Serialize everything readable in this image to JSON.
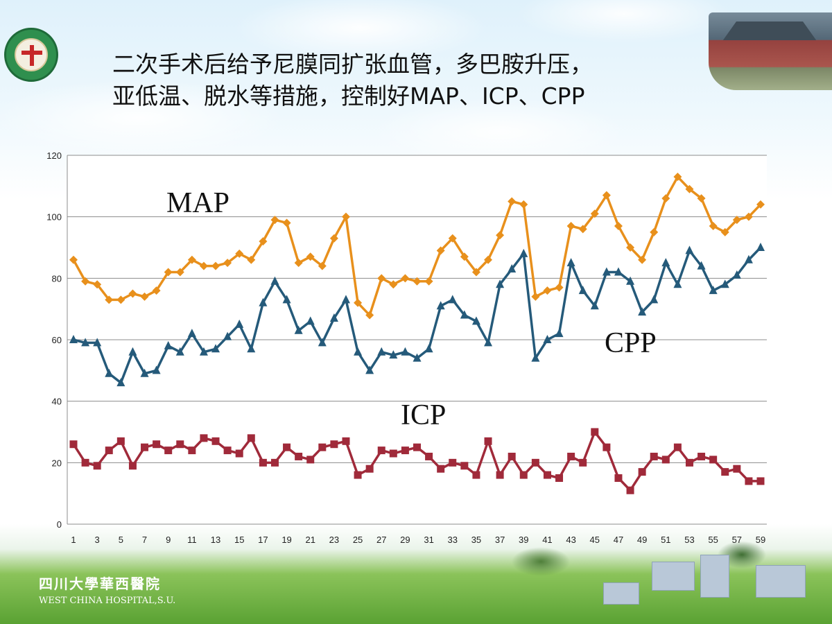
{
  "slide": {
    "title_line1": "二次手术后给予尼膜同扩张血管，多巴胺升压，",
    "title_line2": "亚低温、脱水等措施，控制好MAP、ICP、CPP"
  },
  "footer": {
    "logo_cn": "四川大學華西醫院",
    "logo_en": "WEST CHINA HOSPITAL,S.U."
  },
  "colors": {
    "map": "#e8901c",
    "cpp": "#255a7a",
    "icp": "#a02a3a",
    "grid": "#8c8c8c"
  },
  "chart_data": {
    "type": "line",
    "ylim": [
      0,
      120
    ],
    "yticks": [
      0,
      20,
      40,
      60,
      80,
      100,
      120
    ],
    "x": [
      1,
      2,
      3,
      4,
      5,
      6,
      7,
      8,
      9,
      10,
      11,
      12,
      13,
      14,
      15,
      16,
      17,
      18,
      19,
      20,
      21,
      22,
      23,
      24,
      25,
      26,
      27,
      28,
      29,
      30,
      31,
      32,
      33,
      34,
      35,
      36,
      37,
      38,
      39,
      40,
      41,
      42,
      43,
      44,
      45,
      46,
      47,
      48,
      49,
      50,
      51,
      52,
      53,
      54,
      55,
      56,
      57,
      58,
      59
    ],
    "xtick_labels": [
      "1",
      "3",
      "5",
      "7",
      "9",
      "11",
      "13",
      "15",
      "17",
      "19",
      "21",
      "23",
      "25",
      "27",
      "29",
      "31",
      "33",
      "35",
      "37",
      "39",
      "41",
      "43",
      "45",
      "47",
      "49",
      "51",
      "53",
      "55",
      "57",
      "59"
    ],
    "grid": "horizontal",
    "series": [
      {
        "name": "MAP",
        "marker": "diamond",
        "values": [
          86,
          79,
          78,
          73,
          73,
          75,
          74,
          76,
          82,
          82,
          86,
          84,
          84,
          85,
          88,
          86,
          92,
          99,
          98,
          85,
          87,
          84,
          93,
          100,
          72,
          68,
          80,
          78,
          80,
          79,
          79,
          89,
          93,
          87,
          82,
          86,
          94,
          105,
          104,
          74,
          76,
          77,
          97,
          96,
          101,
          107,
          97,
          90,
          86,
          95,
          106,
          113,
          109,
          106,
          97,
          95,
          99,
          100,
          104
        ]
      },
      {
        "name": "CPP",
        "marker": "triangle",
        "values": [
          60,
          59,
          59,
          49,
          46,
          56,
          49,
          50,
          58,
          56,
          62,
          56,
          57,
          61,
          65,
          57,
          72,
          79,
          73,
          63,
          66,
          59,
          67,
          73,
          56,
          50,
          56,
          55,
          56,
          54,
          57,
          71,
          73,
          68,
          66,
          59,
          78,
          83,
          88,
          54,
          60,
          62,
          85,
          76,
          71,
          82,
          82,
          79,
          69,
          73,
          85,
          78,
          89,
          84,
          76,
          78,
          81,
          86,
          90
        ]
      },
      {
        "name": "ICP",
        "marker": "square",
        "values": [
          26,
          20,
          19,
          24,
          27,
          19,
          25,
          26,
          24,
          26,
          24,
          28,
          27,
          24,
          23,
          28,
          20,
          20,
          25,
          22,
          21,
          25,
          26,
          27,
          16,
          18,
          24,
          23,
          24,
          25,
          22,
          18,
          20,
          19,
          16,
          27,
          16,
          22,
          16,
          20,
          16,
          15,
          22,
          20,
          30,
          25,
          15,
          11,
          17,
          22,
          21,
          25,
          20,
          22,
          21,
          17,
          18,
          14,
          14
        ]
      }
    ],
    "annotations": [
      "MAP",
      "CPP",
      "ICP"
    ]
  }
}
